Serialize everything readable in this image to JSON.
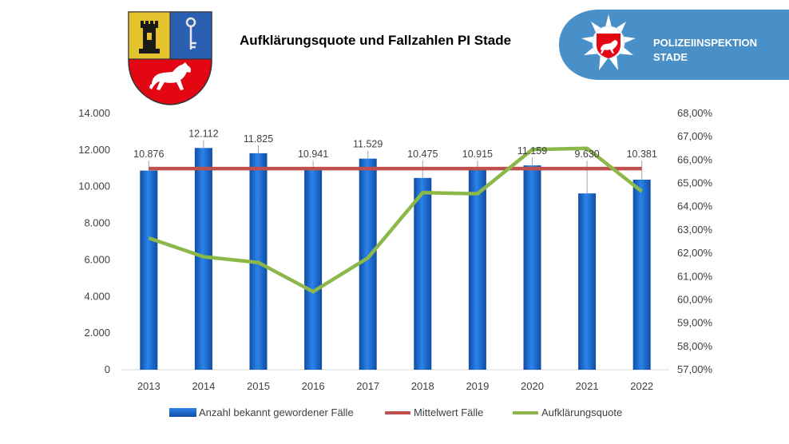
{
  "header": {
    "title": "Aufklärungsquote und Fallzahlen PI Stade",
    "badge_line1": "POLIZEIINSPEKTION",
    "badge_line2": "STADE"
  },
  "colors": {
    "bars": "#1f6fd6",
    "bars_dark": "#0f4da5",
    "mean_line": "#c0504d",
    "rate_line": "#8cb84a",
    "badge": "#4a90c8"
  },
  "chart_data": {
    "type": "bar",
    "categories": [
      "2013",
      "2014",
      "2015",
      "2016",
      "2017",
      "2018",
      "2019",
      "2020",
      "2021",
      "2022"
    ],
    "series": [
      {
        "name": "Anzahl bekannt gewordener Fälle",
        "type": "bar",
        "axis": "left",
        "values": [
          10876,
          12112,
          11825,
          10941,
          11529,
          10475,
          10915,
          11159,
          9630,
          10381
        ],
        "labels": [
          "10.876",
          "12.112",
          "11.825",
          "10.941",
          "11.529",
          "10.475",
          "10.915",
          "11.159",
          "9.630",
          "10.381"
        ]
      },
      {
        "name": "Mittelwert Fälle",
        "type": "line",
        "axis": "left",
        "values": [
          10984,
          10984,
          10984,
          10984,
          10984,
          10984,
          10984,
          10984,
          10984,
          10984
        ]
      },
      {
        "name": "Aufklärungsquote",
        "type": "line",
        "axis": "right",
        "values": [
          62.65,
          61.85,
          61.6,
          60.35,
          61.8,
          64.6,
          64.55,
          66.45,
          66.5,
          64.65
        ]
      }
    ],
    "y_left": {
      "range": [
        0,
        14000
      ],
      "ticks": [
        0,
        2000,
        4000,
        6000,
        8000,
        10000,
        12000,
        14000
      ],
      "tick_labels": [
        "0",
        "2.000",
        "4.000",
        "6.000",
        "8.000",
        "10.000",
        "12.000",
        "14.000"
      ]
    },
    "y_right": {
      "range": [
        57,
        68
      ],
      "ticks": [
        57,
        58,
        59,
        60,
        61,
        62,
        63,
        64,
        65,
        66,
        67,
        68
      ],
      "tick_labels": [
        "57,00%",
        "58,00%",
        "59,00%",
        "60,00%",
        "61,00%",
        "62,00%",
        "63,00%",
        "64,00%",
        "65,00%",
        "66,00%",
        "67,00%",
        "68,00%"
      ]
    },
    "grid": false,
    "legend": "bottom"
  }
}
